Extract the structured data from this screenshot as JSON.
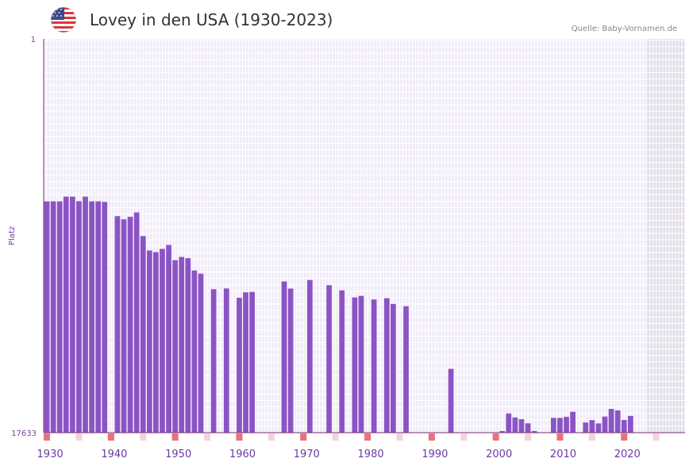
{
  "header": {
    "title": "Lovey in den USA (1930-2023)",
    "source": "Quelle: Baby-Vornamen.de",
    "flag_icon": "usa-flag-icon"
  },
  "colors": {
    "bar": "#8b54c4",
    "plot_bg": "#f1ecfa",
    "grid": "#ffffff",
    "future_bg": "#e2ddea",
    "axis": "#7a2a6e",
    "decade_marker": "#e8737a",
    "half_decade_marker": "#f6d3d8"
  },
  "chart_data": {
    "type": "bar",
    "title": "Lovey in den USA (1930-2023)",
    "xlabel": "",
    "ylabel": "Platz",
    "y_axis_inverted": true,
    "ylim": [
      1,
      17633
    ],
    "yticks": [
      "1",
      "17633"
    ],
    "xlim": [
      1929,
      2029
    ],
    "xticks": [
      "1930",
      "1940",
      "1950",
      "1960",
      "1970",
      "1980",
      "1990",
      "2000",
      "2010",
      "2020"
    ],
    "shaded_years_from": 2023,
    "categories": [
      1929,
      1930,
      1931,
      1932,
      1933,
      1934,
      1935,
      1936,
      1937,
      1938,
      1940,
      1941,
      1942,
      1943,
      1944,
      1945,
      1946,
      1947,
      1948,
      1949,
      1950,
      1951,
      1952,
      1953,
      1955,
      1957,
      1959,
      1960,
      1961,
      1966,
      1967,
      1970,
      1973,
      1975,
      1977,
      1978,
      1980,
      1982,
      1983,
      1985,
      1992,
      2000,
      2001,
      2002,
      2003,
      2004,
      2005,
      2008,
      2009,
      2010,
      2011,
      2013,
      2014,
      2015,
      2016,
      2017,
      2018,
      2019,
      2020
    ],
    "values": [
      7275,
      7275,
      7275,
      7064,
      7064,
      7268,
      7064,
      7275,
      7275,
      7300,
      7937,
      8078,
      7968,
      7770,
      8830,
      9476,
      9550,
      9405,
      9227,
      9908,
      9764,
      9818,
      10372,
      10513,
      11210,
      11175,
      11593,
      11349,
      11329,
      10862,
      11180,
      10798,
      11030,
      11262,
      11577,
      11508,
      11669,
      11611,
      11870,
      11971,
      14772,
      17633,
      16774,
      16952,
      17033,
      17214,
      17633,
      16972,
      16972,
      16924,
      16699,
      17180,
      17072,
      17220,
      16911,
      16569,
      16636,
      17066,
      16883
    ],
    "y_axis_ref": "values are name ranks: 1 = top of chart, 17633 = baseline"
  }
}
